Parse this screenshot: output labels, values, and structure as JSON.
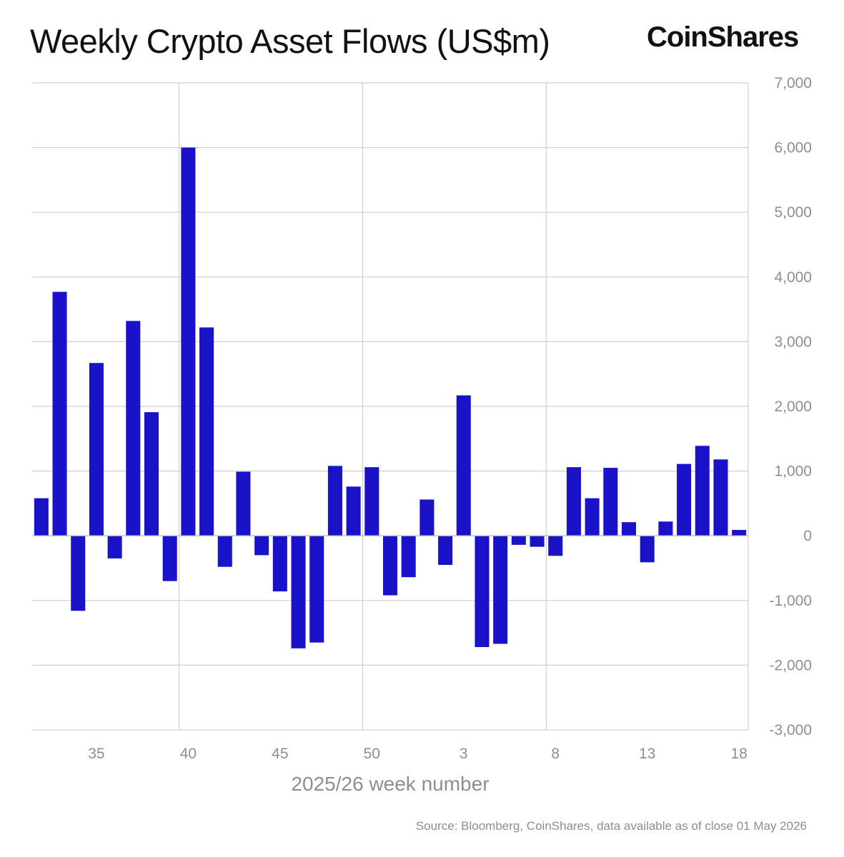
{
  "header": {
    "title": "Weekly Crypto Asset Flows (US$m)",
    "brand": "CoinShares"
  },
  "footer": {
    "source": "Source: Bloomberg, CoinShares, data available as of close 01 May 2026"
  },
  "colors": {
    "bar": "#1a12c8",
    "grid": "#cfcfcf",
    "zero_line": "#bdbdbd",
    "tick_text": "#8e8e8e"
  },
  "chart_data": {
    "type": "bar",
    "title": "Weekly Crypto Asset Flows (US$m)",
    "xlabel": "2025/26 week number",
    "ylabel": "",
    "ylim": [
      -3000,
      7000
    ],
    "y_ticks": [
      7000,
      6000,
      5000,
      4000,
      3000,
      2000,
      1000,
      0,
      -1000,
      -2000,
      -3000
    ],
    "y_tick_labels": [
      "7,000",
      "6,000",
      "5,000",
      "4,000",
      "3,000",
      "2,000",
      "1,000",
      "0",
      "-1,000",
      "-2,000",
      "-3,000"
    ],
    "y_axis_position": "right",
    "x_tick_labels": [
      {
        "category": "35",
        "label": "35"
      },
      {
        "category": "40",
        "label": "40"
      },
      {
        "category": "45",
        "label": "45"
      },
      {
        "category": "50",
        "label": "50"
      },
      {
        "category": "3",
        "label": "3"
      },
      {
        "category": "8",
        "label": "8"
      },
      {
        "category": "13",
        "label": "13"
      },
      {
        "category": "18",
        "label": "18"
      }
    ],
    "vertical_gridlines_before": [
      "40",
      "50",
      "8"
    ],
    "grid": true,
    "legend": "none",
    "categories": [
      "32",
      "33",
      "34",
      "35",
      "36",
      "37",
      "38",
      "39",
      "40",
      "41",
      "42",
      "43",
      "44",
      "45",
      "46",
      "47",
      "48",
      "49",
      "50",
      "51",
      "52",
      "1",
      "2",
      "3",
      "4",
      "5",
      "6",
      "7",
      "8",
      "9",
      "10",
      "11",
      "12",
      "13",
      "14",
      "15",
      "16",
      "17",
      "18"
    ],
    "values": [
      580,
      3770,
      -1160,
      2670,
      -350,
      3320,
      1910,
      -700,
      6000,
      3220,
      -480,
      990,
      -300,
      -860,
      -1740,
      -1650,
      1080,
      760,
      1060,
      -920,
      -640,
      560,
      -450,
      2170,
      -1720,
      -1670,
      -140,
      -170,
      -310,
      1060,
      580,
      1050,
      210,
      -410,
      220,
      1110,
      1390,
      1180,
      90
    ]
  }
}
